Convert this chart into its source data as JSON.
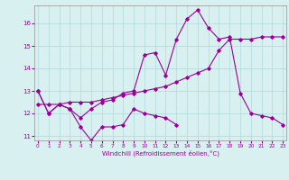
{
  "xlabel": "Windchill (Refroidissement éolien,°C)",
  "bg_color": "#d8f0f0",
  "line_color": "#990099",
  "grid_color": "#b0d8d8",
  "hours": [
    0,
    1,
    2,
    3,
    4,
    5,
    6,
    7,
    8,
    9,
    10,
    11,
    12,
    13,
    14,
    15,
    16,
    17,
    18,
    19,
    20,
    21,
    22,
    23
  ],
  "series1": [
    13.0,
    12.0,
    12.4,
    12.2,
    11.4,
    10.8,
    11.4,
    11.4,
    11.5,
    12.2,
    12.0,
    11.9,
    11.8,
    11.5,
    null,
    null,
    null,
    null,
    null,
    null,
    null,
    null,
    null,
    null
  ],
  "series2": [
    13.0,
    12.0,
    12.4,
    12.2,
    11.8,
    12.2,
    12.5,
    12.6,
    12.9,
    13.0,
    14.6,
    14.7,
    13.7,
    15.3,
    16.2,
    16.6,
    15.8,
    15.3,
    15.4,
    12.9,
    12.0,
    11.9,
    11.8,
    11.5
  ],
  "series3": [
    12.4,
    12.4,
    12.4,
    12.5,
    12.5,
    12.5,
    12.6,
    12.7,
    12.8,
    12.9,
    13.0,
    13.1,
    13.2,
    13.4,
    13.6,
    13.8,
    14.0,
    14.8,
    15.3,
    15.3,
    15.3,
    15.4,
    15.4,
    15.4
  ],
  "ylim": [
    10.8,
    16.8
  ],
  "yticks": [
    11,
    12,
    13,
    14,
    15,
    16
  ],
  "xlim": [
    -0.3,
    23.3
  ]
}
